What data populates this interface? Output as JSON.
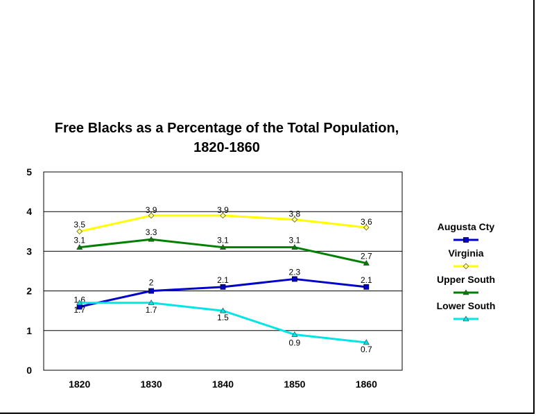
{
  "chart_data": {
    "type": "line",
    "title": [
      "Free Blacks as a Percentage of the Total Population,",
      "1820-1860"
    ],
    "categories": [
      "1820",
      "1830",
      "1840",
      "1850",
      "1860"
    ],
    "ylim": [
      0,
      5
    ],
    "yticks": [
      "0",
      "1",
      "2",
      "3",
      "4",
      "5"
    ],
    "xlabel": "",
    "ylabel": "",
    "grid": true,
    "legend_position": "right",
    "series": [
      {
        "name": "Augusta Cty",
        "color": "#0000cc",
        "marker": "square",
        "values": [
          1.6,
          2,
          2.1,
          2.3,
          2.1
        ],
        "labels": [
          "1.6",
          "2",
          "2.1",
          "2.3",
          "2.1"
        ]
      },
      {
        "name": "Virginia",
        "color": "#ffff00",
        "marker": "diamond",
        "values": [
          3.5,
          3.9,
          3.9,
          3.8,
          3.6
        ],
        "labels": [
          "3.5",
          "3.9",
          "3.9",
          "3.8",
          "3.6"
        ]
      },
      {
        "name": "Upper South",
        "color": "#008000",
        "marker": "triangle",
        "values": [
          3.1,
          3.3,
          3.1,
          3.1,
          2.7
        ],
        "labels": [
          "3.1",
          "3.3",
          "3.1",
          "3.1",
          "2.7"
        ]
      },
      {
        "name": "Lower South",
        "color": "#00e5e5",
        "marker": "triangle",
        "values": [
          1.7,
          1.7,
          1.5,
          0.9,
          0.7
        ],
        "labels": [
          "1.7",
          "1.7",
          "1.5",
          "0.9",
          "0.7"
        ]
      }
    ]
  }
}
